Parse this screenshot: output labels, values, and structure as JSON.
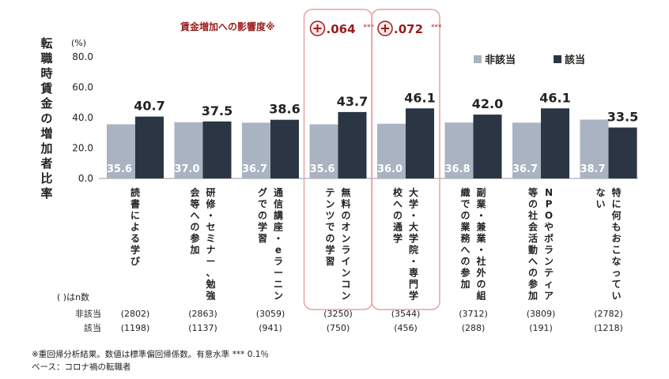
{
  "chart_data": {
    "type": "bar",
    "ylabel": "転職時賃金の増加者比率",
    "unit": "(%)",
    "ylim": [
      0,
      80
    ],
    "yticks": [
      "0.0",
      "20.0",
      "40.0",
      "60.0",
      "80.0"
    ],
    "categories": [
      [
        "読書による学び"
      ],
      [
        "研修・セミナー、勉強",
        "会等への参加"
      ],
      [
        "通信講座・eラーニン",
        "グでの学習"
      ],
      [
        "無料のオンラインコン",
        "テンツでの学習"
      ],
      [
        "大学・大学院・専門学",
        "校への通学"
      ],
      [
        "副業・兼業・社外の組",
        "織での業務への参加"
      ],
      [
        "NPOやボランティア",
        "等の社会活動への参加"
      ],
      [
        "特に何もおこなってい",
        "ない"
      ]
    ],
    "series": [
      {
        "name": "非該当",
        "color": "#a9b3c1",
        "values": [
          35.6,
          37.0,
          36.7,
          35.6,
          36.0,
          36.8,
          36.7,
          38.7
        ],
        "labels": [
          "35.6",
          "37.0",
          "36.7",
          "35.6",
          "36.0",
          "36.8",
          "36.7",
          "38.7"
        ]
      },
      {
        "name": "該当",
        "color": "#2b3544",
        "values": [
          40.7,
          37.5,
          38.6,
          43.7,
          46.1,
          42.0,
          46.1,
          33.5
        ],
        "labels": [
          "40.7",
          "37.5",
          "38.6",
          "43.7",
          "46.1",
          "42.0",
          "46.1",
          "33.5"
        ]
      }
    ],
    "legend_position": "top-right",
    "impact_title": "賃金増加への影響度※",
    "highlights": [
      {
        "category_index": 3,
        "coef": ".064",
        "stars": "***"
      },
      {
        "category_index": 4,
        "coef": ".072",
        "stars": "***"
      }
    ],
    "n_table": {
      "title": "( )はn数",
      "rows": [
        {
          "label": "非該当",
          "values": [
            "(2802)",
            "(2863)",
            "(3059)",
            "(3250)",
            "(3544)",
            "(3712)",
            "(3809)",
            "(2782)"
          ]
        },
        {
          "label": "該当",
          "values": [
            "(1198)",
            "(1137)",
            "(941)",
            "(750)",
            "(456)",
            "(288)",
            "(191)",
            "(1218)"
          ]
        }
      ]
    },
    "notes": [
      "※重回帰分析結果。数値は標準偏回帰係数。有意水準 *** 0.1％",
      "ベース：コロナ禍の転職者"
    ]
  }
}
